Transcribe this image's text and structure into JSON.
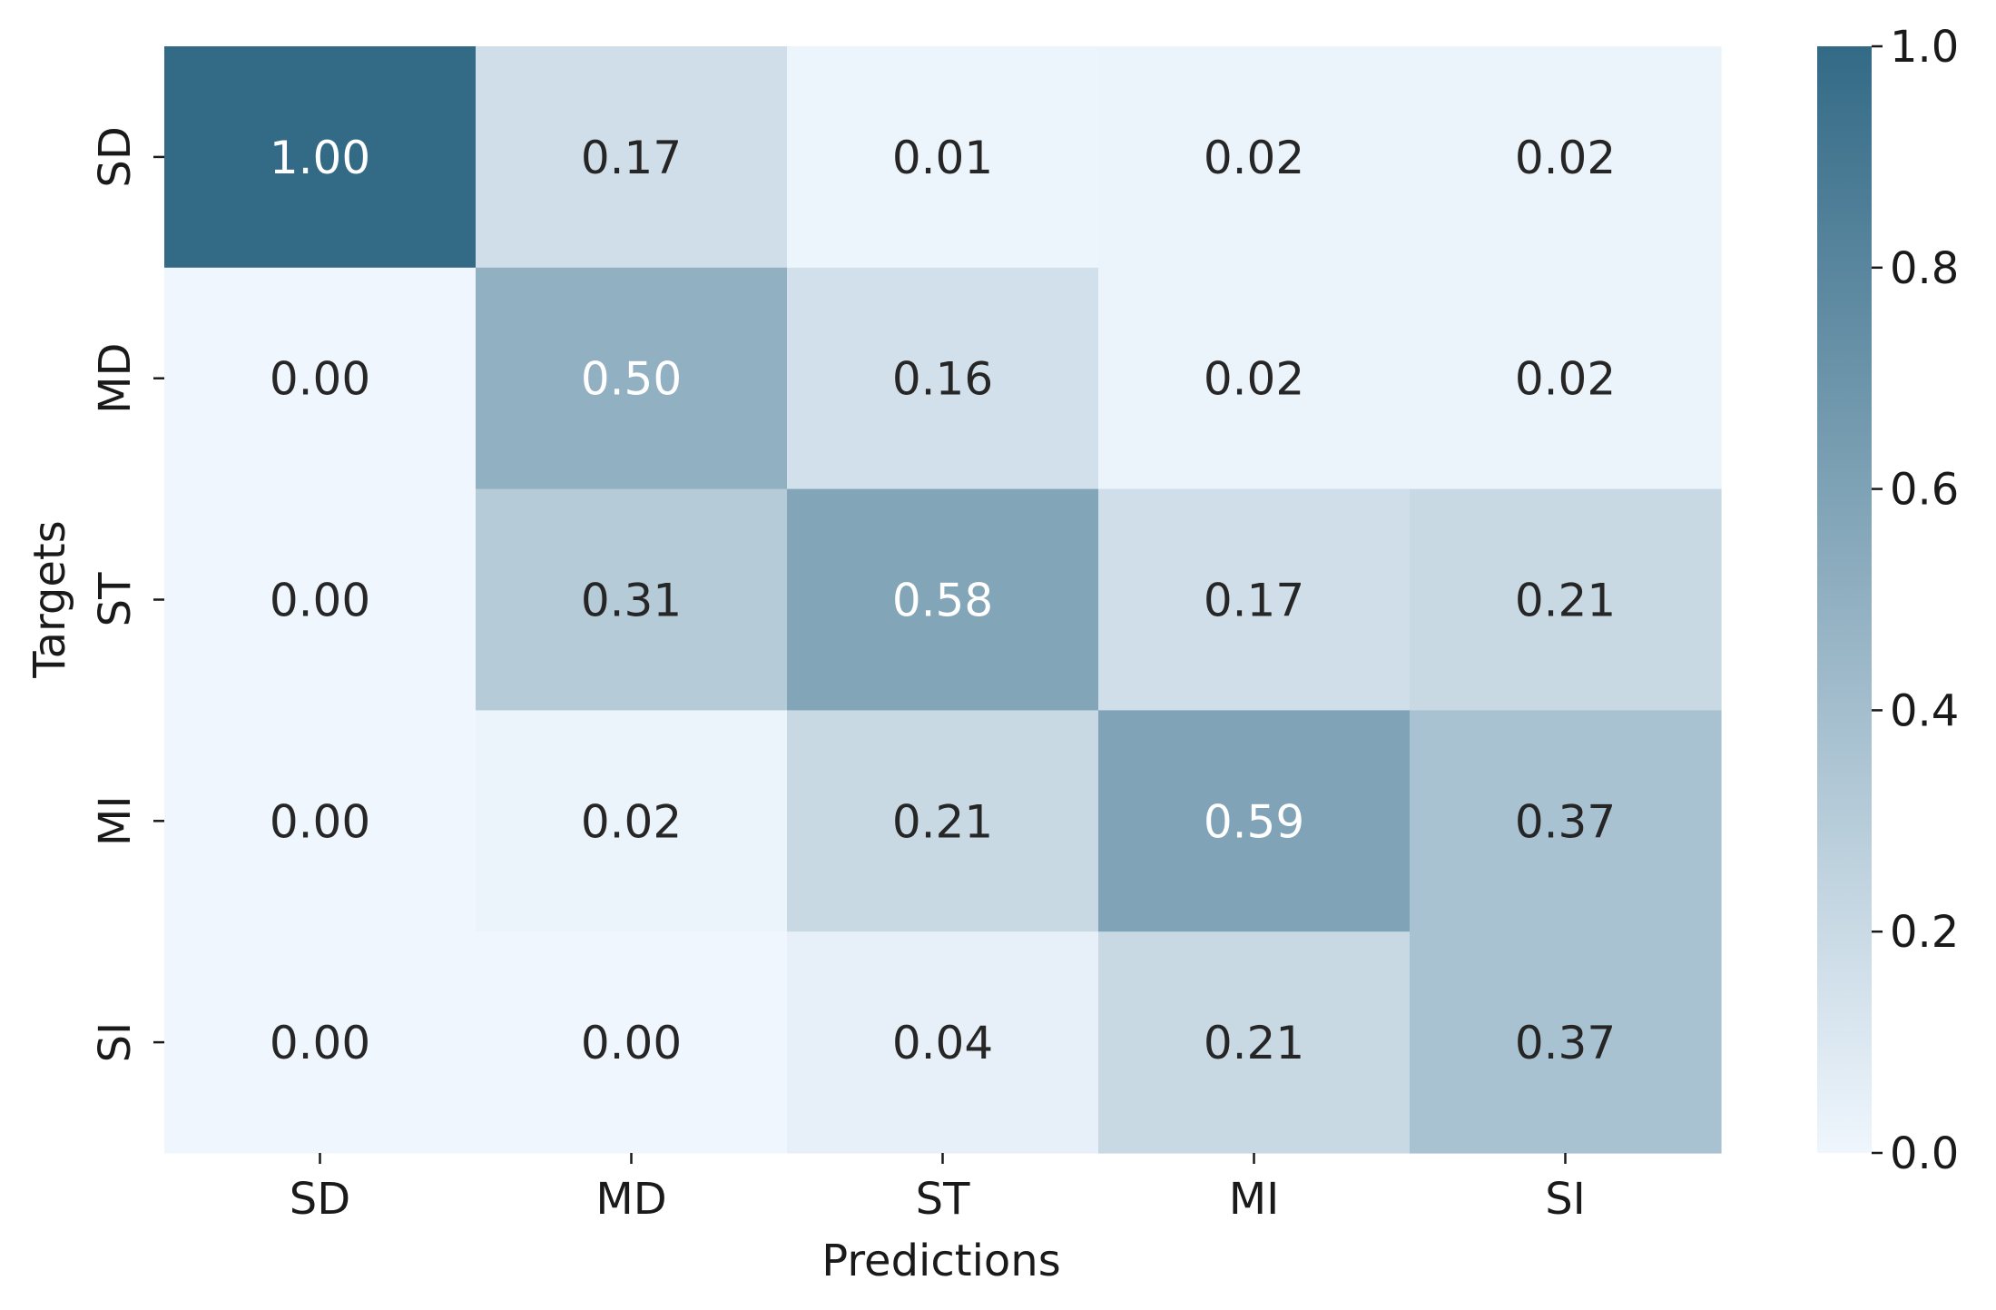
{
  "chart_data": {
    "type": "heatmap",
    "title": "",
    "xlabel": "Predictions",
    "ylabel": "Targets",
    "x_categories": [
      "SD",
      "MD",
      "ST",
      "MI",
      "SI"
    ],
    "y_categories": [
      "SD",
      "MD",
      "ST",
      "MI",
      "SI"
    ],
    "values": [
      [
        1.0,
        0.17,
        0.01,
        0.02,
        0.02
      ],
      [
        0.0,
        0.5,
        0.16,
        0.02,
        0.02
      ],
      [
        0.0,
        0.31,
        0.58,
        0.17,
        0.21
      ],
      [
        0.0,
        0.02,
        0.21,
        0.59,
        0.37
      ],
      [
        0.0,
        0.0,
        0.04,
        0.21,
        0.37
      ]
    ],
    "value_format": "0.00",
    "colorbar": {
      "min": 0.0,
      "max": 1.0,
      "ticks": [
        "0.0",
        "0.2",
        "0.4",
        "0.6",
        "0.8",
        "1.0"
      ],
      "color_low": "#eff6fd",
      "color_high": "#336a86"
    },
    "annotation_colors": {
      "dark": "#262626",
      "light": "#ffffff"
    },
    "grid": false,
    "legend": "colorbar-right"
  }
}
